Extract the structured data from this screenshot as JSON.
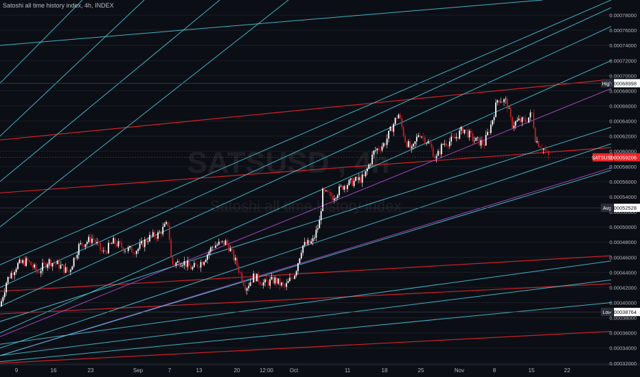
{
  "header": {
    "title": "Satoshi all time history index, 4h, INDEX"
  },
  "watermark": {
    "symbol": "SATSUSD , 4h",
    "name": "Satoshi all time history index"
  },
  "colors": {
    "background": "#0c0e15",
    "up": "#ffffff",
    "down": "#c61e24",
    "cyan": "#48c7d8",
    "red": "#e8262a",
    "magenta": "#b04fd0",
    "grid": "#1a1d27"
  },
  "chart_data": {
    "type": "candlestick",
    "symbol": "SATSUSD",
    "interval": "4h",
    "ylim": [
      0.000318,
      0.0008
    ],
    "y_ticks": [
      "0.00032000",
      "0.00034000",
      "0.00036000",
      "0.00038000",
      "0.00040000",
      "0.00042000",
      "0.00044000",
      "0.00046000",
      "0.00048000",
      "0.00050000",
      "0.00052000",
      "0.00054000",
      "0.00056000",
      "0.00058000",
      "0.00060000",
      "0.00062000",
      "0.00064000",
      "0.00066000",
      "0.00068000",
      "0.00070000",
      "0.00072000",
      "0.00074000",
      "0.00076000",
      "0.00078000"
    ],
    "x_ticks": [
      "9",
      "16",
      "23",
      "Sep",
      "7",
      "13",
      "20",
      "12:00",
      "Oct",
      "11",
      "18",
      "25",
      "Nov",
      "8",
      "15",
      "22"
    ],
    "price_markers": [
      {
        "label": "High",
        "value": "0.00068998"
      },
      {
        "label": "SATSUSD",
        "value": "0.00059206"
      },
      {
        "label": "Avg",
        "value": "0.00052528"
      },
      {
        "label": "Low",
        "value": "0.00038764"
      }
    ],
    "price_path": [
      [
        0,
        0.000395
      ],
      [
        10,
        0.00043
      ],
      [
        25,
        0.00045
      ],
      [
        40,
        0.000455
      ],
      [
        55,
        0.00044
      ],
      [
        70,
        0.000455
      ],
      [
        85,
        0.00045
      ],
      [
        100,
        0.00044
      ],
      [
        115,
        0.000475
      ],
      [
        135,
        0.000485
      ],
      [
        150,
        0.000465
      ],
      [
        165,
        0.00048
      ],
      [
        185,
        0.00047
      ],
      [
        200,
        0.00047
      ],
      [
        215,
        0.000485
      ],
      [
        230,
        0.00049
      ],
      [
        245,
        0.000505
      ],
      [
        250,
        0.00045
      ],
      [
        265,
        0.000455
      ],
      [
        280,
        0.000445
      ],
      [
        295,
        0.000455
      ],
      [
        310,
        0.000475
      ],
      [
        330,
        0.00048
      ],
      [
        345,
        0.00045
      ],
      [
        358,
        0.00042
      ],
      [
        370,
        0.000435
      ],
      [
        385,
        0.000425
      ],
      [
        400,
        0.00043
      ],
      [
        415,
        0.00042
      ],
      [
        430,
        0.00044
      ],
      [
        440,
        0.000475
      ],
      [
        455,
        0.00048
      ],
      [
        465,
        0.000505
      ],
      [
        470,
        0.000545
      ],
      [
        485,
        0.00054
      ],
      [
        500,
        0.000555
      ],
      [
        515,
        0.00056
      ],
      [
        530,
        0.000565
      ],
      [
        545,
        0.0006
      ],
      [
        560,
        0.00061
      ],
      [
        570,
        0.00063
      ],
      [
        580,
        0.00065
      ],
      [
        590,
        0.000615
      ],
      [
        600,
        0.0006
      ],
      [
        610,
        0.000625
      ],
      [
        625,
        0.00061
      ],
      [
        635,
        0.00059
      ],
      [
        645,
        0.00061
      ],
      [
        660,
        0.000615
      ],
      [
        675,
        0.00063
      ],
      [
        690,
        0.000615
      ],
      [
        705,
        0.00061
      ],
      [
        715,
        0.000635
      ],
      [
        725,
        0.00067
      ],
      [
        738,
        0.000665
      ],
      [
        745,
        0.000635
      ],
      [
        755,
        0.00064
      ],
      [
        765,
        0.00064
      ],
      [
        775,
        0.00065
      ],
      [
        780,
        0.000615
      ],
      [
        790,
        0.000605
      ],
      [
        800,
        0.000592
      ]
    ],
    "trend_lines": [
      {
        "color": "red",
        "x1": 0,
        "y1": 0.000615,
        "x2": 890,
        "y2": 0.000695
      },
      {
        "color": "red",
        "x1": 0,
        "y1": 0.000545,
        "x2": 890,
        "y2": 0.000605
      },
      {
        "color": "red",
        "x1": 0,
        "y1": 0.000415,
        "x2": 890,
        "y2": 0.000462
      },
      {
        "color": "red",
        "x1": 0,
        "y1": 0.000385,
        "x2": 890,
        "y2": 0.000425
      },
      {
        "color": "red",
        "x1": 0,
        "y1": 0.00032,
        "x2": 890,
        "y2": 0.000362
      },
      {
        "color": "magenta",
        "x1": 0,
        "y1": 0.000355,
        "x2": 890,
        "y2": 0.000683
      },
      {
        "color": "magenta",
        "x1": 0,
        "y1": 0.00033,
        "x2": 890,
        "y2": 0.000578
      },
      {
        "color": "cyan",
        "x1": 0,
        "y1": 0.00074,
        "x2": 790,
        "y2": 0.0008
      },
      {
        "color": "cyan",
        "x1": 0,
        "y1": 0.000375,
        "x2": 890,
        "y2": 0.000632
      },
      {
        "color": "cyan",
        "x1": 0,
        "y1": 0.000345,
        "x2": 890,
        "y2": 0.000455
      },
      {
        "color": "cyan",
        "x1": 0,
        "y1": 0.00033,
        "x2": 890,
        "y2": 0.00043
      },
      {
        "color": "cyan",
        "x1": 0,
        "y1": 0.000322,
        "x2": 890,
        "y2": 0.0004
      },
      {
        "color": "cyan",
        "x1": 0,
        "y1": 0.00045,
        "x2": 890,
        "y2": 0.0008
      },
      {
        "color": "cyan",
        "x1": 0,
        "y1": 0.00042,
        "x2": 890,
        "y2": 0.00079
      },
      {
        "color": "cyan",
        "x1": 0,
        "y1": 0.000395,
        "x2": 890,
        "y2": 0.000765
      },
      {
        "color": "cyan",
        "x1": 0,
        "y1": 0.00036,
        "x2": 890,
        "y2": 0.00072
      },
      {
        "color": "cyan",
        "x1": 0,
        "y1": 0.00034,
        "x2": 890,
        "y2": 0.00061
      },
      {
        "color": "cyan",
        "x1": 0,
        "y1": 0.00033,
        "x2": 890,
        "y2": 0.000575
      },
      {
        "color": "cyan",
        "x1": 0,
        "y1": 0.00062,
        "x2": 210,
        "y2": 0.0008
      },
      {
        "color": "cyan",
        "x1": 0,
        "y1": 0.00056,
        "x2": 320,
        "y2": 0.0008
      },
      {
        "color": "cyan",
        "x1": 0,
        "y1": 0.0005,
        "x2": 420,
        "y2": 0.0008
      },
      {
        "color": "cyan",
        "x1": 0,
        "y1": 0.00069,
        "x2": 120,
        "y2": 0.0008
      }
    ]
  }
}
